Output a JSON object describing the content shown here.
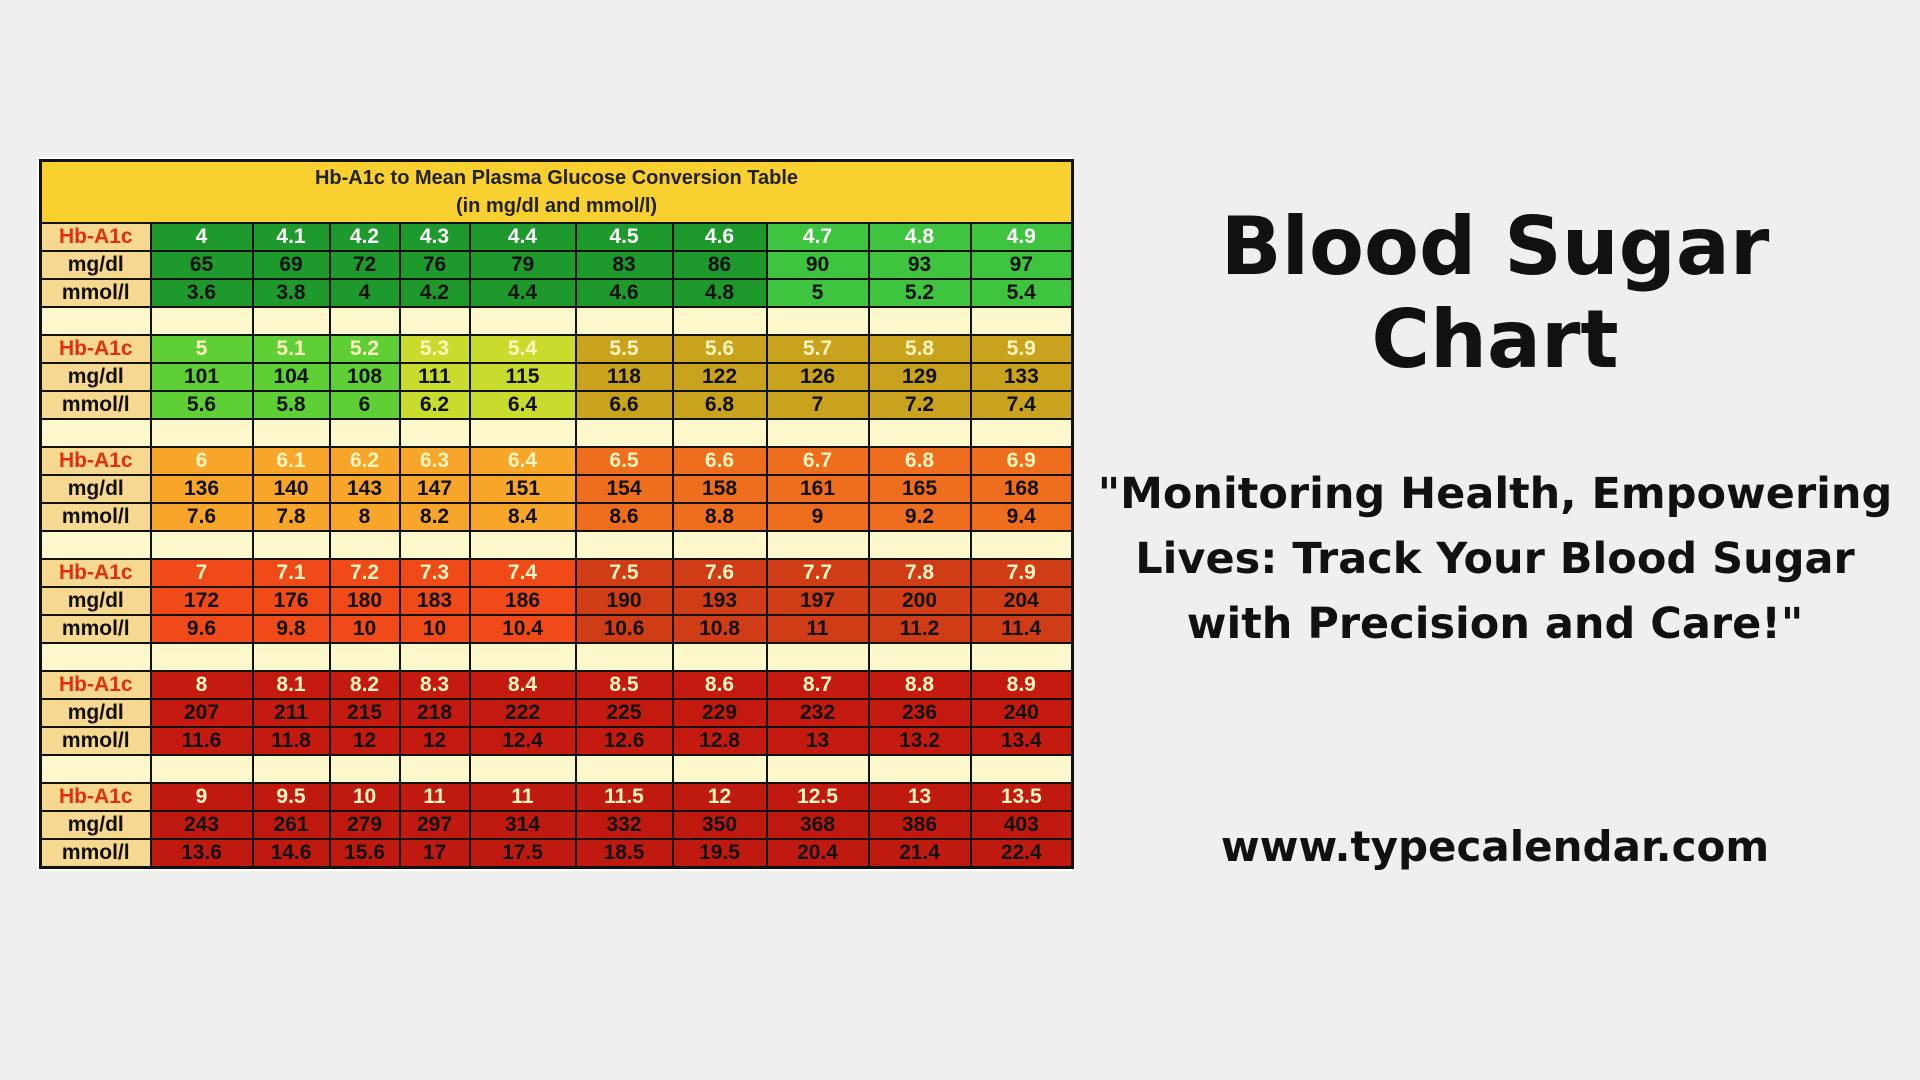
{
  "table": {
    "title_line1": "Hb-A1c to Mean Plasma Glucose Conversion Table",
    "title_line2": "(in mg/dl and mmol/l)",
    "row_labels": {
      "hb": "Hb-A1c",
      "mg": "mg/dl",
      "mmol": "mmol/l"
    },
    "blocks": [
      {
        "hb": [
          "4",
          "4.1",
          "4.2",
          "4.3",
          "4.4",
          "4.5",
          "4.6",
          "4.7",
          "4.8",
          "4.9"
        ],
        "mg": [
          "65",
          "69",
          "72",
          "76",
          "79",
          "83",
          "86",
          "90",
          "93",
          "97"
        ],
        "mmol": [
          "3.6",
          "3.8",
          "4",
          "4.2",
          "4.4",
          "4.6",
          "4.8",
          "5",
          "5.2",
          "5.4"
        ],
        "colors": [
          "#1e9a2c",
          "#1e9a2c",
          "#1e9a2c",
          "#1e9a2c",
          "#1e9a2c",
          "#1e9a2c",
          "#1e9a2c",
          "#3ec43e",
          "#3ec43e",
          "#3ec43e"
        ],
        "hb_text": "#ffffff"
      },
      {
        "hb": [
          "5",
          "5.1",
          "5.2",
          "5.3",
          "5.4",
          "5.5",
          "5.6",
          "5.7",
          "5.8",
          "5.9"
        ],
        "mg": [
          "101",
          "104",
          "108",
          "111",
          "115",
          "118",
          "122",
          "126",
          "129",
          "133"
        ],
        "mmol": [
          "5.6",
          "5.8",
          "6",
          "6.2",
          "6.4",
          "6.6",
          "6.8",
          "7",
          "7.2",
          "7.4"
        ],
        "colors": [
          "#5fcf36",
          "#5fcf36",
          "#5fcf36",
          "#c9dc2e",
          "#c9dc2e",
          "#c9a21e",
          "#c9a21e",
          "#c9a21e",
          "#c9a21e",
          "#c9a21e"
        ],
        "hb_text": "#fdf6c0"
      },
      {
        "hb": [
          "6",
          "6.1",
          "6.2",
          "6.3",
          "6.4",
          "6.5",
          "6.6",
          "6.7",
          "6.8",
          "6.9"
        ],
        "mg": [
          "136",
          "140",
          "143",
          "147",
          "151",
          "154",
          "158",
          "161",
          "165",
          "168"
        ],
        "mmol": [
          "7.6",
          "7.8",
          "8",
          "8.2",
          "8.4",
          "8.6",
          "8.8",
          "9",
          "9.2",
          "9.4"
        ],
        "colors": [
          "#f7a62a",
          "#f7a62a",
          "#f7a62a",
          "#f7a62a",
          "#f7a62a",
          "#ef6e1e",
          "#ef6e1e",
          "#ef6e1e",
          "#ef6e1e",
          "#ef6e1e"
        ],
        "hb_text": "#fdf6c0"
      },
      {
        "hb": [
          "7",
          "7.1",
          "7.2",
          "7.3",
          "7.4",
          "7.5",
          "7.6",
          "7.7",
          "7.8",
          "7.9"
        ],
        "mg": [
          "172",
          "176",
          "180",
          "183",
          "186",
          "190",
          "193",
          "197",
          "200",
          "204"
        ],
        "mmol": [
          "9.6",
          "9.8",
          "10",
          "10",
          "10.4",
          "10.6",
          "10.8",
          "11",
          "11.2",
          "11.4"
        ],
        "colors": [
          "#f04a18",
          "#f04a18",
          "#f04a18",
          "#f04a18",
          "#f04a18",
          "#d03c16",
          "#d03c16",
          "#d03c16",
          "#d03c16",
          "#d03c16"
        ],
        "hb_text": "#fdf6c0"
      },
      {
        "hb": [
          "8",
          "8.1",
          "8.2",
          "8.3",
          "8.4",
          "8.5",
          "8.6",
          "8.7",
          "8.8",
          "8.9"
        ],
        "mg": [
          "207",
          "211",
          "215",
          "218",
          "222",
          "225",
          "229",
          "232",
          "236",
          "240"
        ],
        "mmol": [
          "11.6",
          "11.8",
          "12",
          "12",
          "12.4",
          "12.6",
          "12.8",
          "13",
          "13.2",
          "13.4"
        ],
        "colors": [
          "#c41a10",
          "#c41a10",
          "#c41a10",
          "#c41a10",
          "#c41a10",
          "#c41a10",
          "#c41a10",
          "#c41a10",
          "#c41a10",
          "#c41a10"
        ],
        "hb_text": "#fdf6c0"
      },
      {
        "hb": [
          "9",
          "9.5",
          "10",
          "11",
          "11",
          "11.5",
          "12",
          "12.5",
          "13",
          "13.5"
        ],
        "mg": [
          "243",
          "261",
          "279",
          "297",
          "314",
          "332",
          "350",
          "368",
          "386",
          "403"
        ],
        "mmol": [
          "13.6",
          "14.6",
          "15.6",
          "17",
          "17.5",
          "18.5",
          "19.5",
          "20.4",
          "21.4",
          "22.4"
        ],
        "colors": [
          "#c01a10",
          "#c01a10",
          "#c01a10",
          "#c01a10",
          "#c01a10",
          "#c01a10",
          "#c01a10",
          "#c01a10",
          "#c01a10",
          "#c01a10"
        ],
        "hb_text": "#fdf6c0"
      }
    ]
  },
  "headline": "Blood Sugar Chart",
  "quote": "\"Monitoring Health, Empowering Lives: Track Your Blood Sugar with Precision and Care!\"",
  "url": "www.typecalendar.com"
}
